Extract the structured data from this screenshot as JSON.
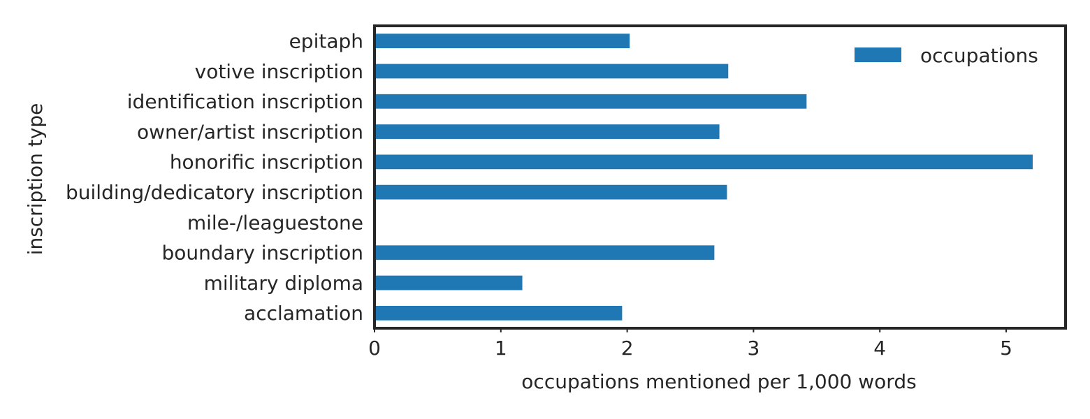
{
  "chart_data": {
    "type": "bar",
    "orientation": "horizontal",
    "categories": [
      "epitaph",
      "votive inscription",
      "identification inscription",
      "owner/artist inscription",
      "honorific inscription",
      "building/dedicatory inscription",
      "mile-/leaguestone",
      "boundary inscription",
      "military diploma",
      "acclamation"
    ],
    "series": [
      {
        "name": "occupations",
        "color": "#1f77b4",
        "values": [
          2.02,
          2.8,
          3.42,
          2.73,
          5.21,
          2.79,
          0,
          2.69,
          1.17,
          1.96
        ]
      }
    ],
    "xlabel": "occupations mentioned per 1,000 words",
    "ylabel": "inscription type",
    "xlim": [
      0,
      5.47
    ],
    "xticks": [
      "0",
      "1",
      "2",
      "3",
      "4",
      "5"
    ],
    "grid": false,
    "legend_position": "top-right"
  }
}
